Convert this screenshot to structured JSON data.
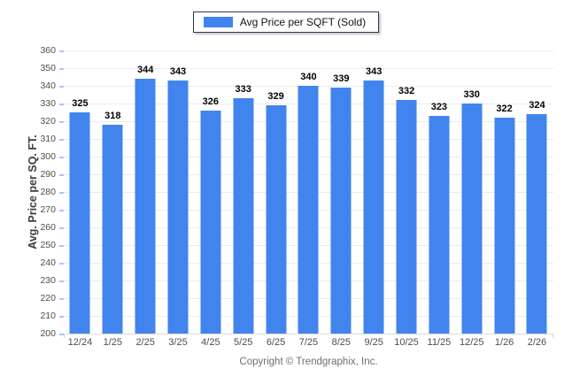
{
  "chart_data": {
    "type": "bar",
    "legend_label": "Avg Price per SQFT (Sold)",
    "categories": [
      "12/24",
      "1/25",
      "2/25",
      "3/25",
      "4/25",
      "5/25",
      "6/25",
      "7/25",
      "8/25",
      "9/25",
      "10/25",
      "11/25",
      "12/25",
      "1/26",
      "2/26"
    ],
    "values": [
      325,
      318,
      344,
      343,
      326,
      333,
      329,
      340,
      339,
      343,
      332,
      323,
      330,
      322,
      324
    ],
    "ylabel": "Avg. Price per SQ. FT.",
    "xlabel": "",
    "ylim": [
      200,
      360
    ],
    "ytick_step": 10,
    "grid": true,
    "legend_position": "top-center",
    "footer": "Copyright © Trendgraphix, Inc."
  },
  "colors": {
    "bar": "#4184ee",
    "gridline": "#ececec",
    "baseline": "#dcdcdc",
    "y_tick_mark": "#a6c8f2",
    "corner_tick": "#d2d2d2",
    "tick_label": "#4d4d4d",
    "value_label": "#000000"
  }
}
